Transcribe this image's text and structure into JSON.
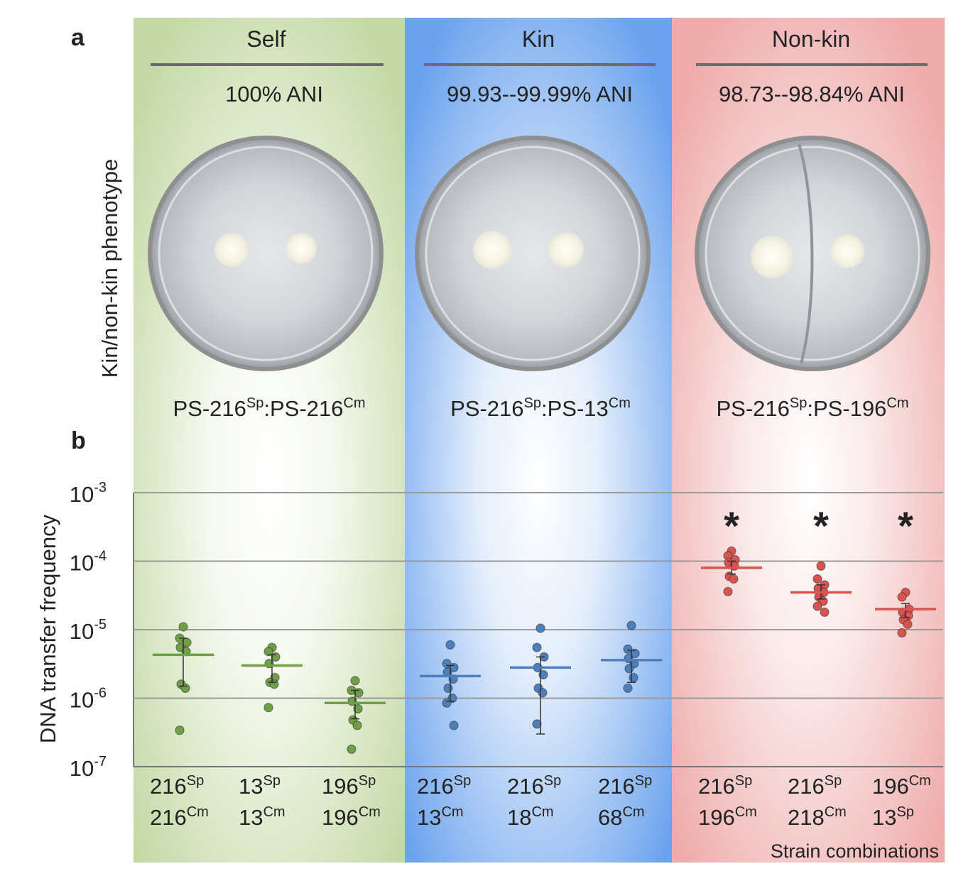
{
  "panel_labels": {
    "a": "a",
    "b": "b"
  },
  "panel_a": {
    "side_label": "Kin/non-kin phenotype",
    "groups": [
      {
        "title": "Self",
        "ani": "100% ANI",
        "pair": [
          "PS-216",
          "Sp",
          ":PS-216",
          "Cm"
        ]
      },
      {
        "title": "Kin",
        "ani": "99.93--99.99% ANI",
        "pair": [
          "PS-216",
          "Sp",
          ":PS-13",
          "Cm"
        ]
      },
      {
        "title": "Non-kin",
        "ani": "98.73--98.84% ANI",
        "pair": [
          "PS-216",
          "Sp",
          ":PS-196",
          "Cm"
        ]
      }
    ]
  },
  "colors": {
    "self_bg": "#c9dcae",
    "kin_bg": "#7aacf0",
    "nonkin_bg": "#f1b3b3",
    "self_dot": "#6fa046",
    "kin_dot": "#4d7fbd",
    "nonkin_dot": "#d9534f",
    "grid": "#9a9a9a"
  },
  "chart_data": {
    "type": "scatter",
    "ylabel": "DNA transfer frequency",
    "xlabel": "Strain combinations",
    "yscale": "log",
    "ylim": [
      1e-07,
      0.001
    ],
    "yticks": [
      {
        "base": "10",
        "exp": "-3"
      },
      {
        "base": "10",
        "exp": "-4"
      },
      {
        "base": "10",
        "exp": "-5"
      },
      {
        "base": "10",
        "exp": "-6"
      },
      {
        "base": "10",
        "exp": "-7"
      }
    ],
    "grid": true,
    "categories": [
      {
        "group": "Self",
        "l1": [
          "216",
          "Sp"
        ],
        "l2": [
          "216",
          "Cm"
        ],
        "median": 4.3e-06,
        "lo": 1.5e-06,
        "hi": 7.5e-06,
        "sig": "",
        "values": [
          1.1e-05,
          7.5e-06,
          6.5e-06,
          5.5e-06,
          4.8e-06,
          1.6e-06,
          1.4e-06,
          3.4e-07
        ]
      },
      {
        "group": "Self",
        "l1": [
          "13",
          "Sp"
        ],
        "l2": [
          "13",
          "Cm"
        ],
        "median": 3e-06,
        "lo": 1.7e-06,
        "hi": 4.3e-06,
        "sig": "",
        "values": [
          5.5e-06,
          4.8e-06,
          4e-06,
          3.2e-06,
          2e-06,
          1.7e-06,
          1.6e-06,
          7.3e-07
        ]
      },
      {
        "group": "Self",
        "l1": [
          "196",
          "Sp"
        ],
        "l2": [
          "196",
          "Cm"
        ],
        "median": 8.5e-07,
        "lo": 5e-07,
        "hi": 1.3e-06,
        "sig": "",
        "values": [
          1.8e-06,
          1.3e-06,
          1.2e-06,
          9e-07,
          7e-07,
          4.8e-07,
          4e-07,
          1.8e-07
        ]
      },
      {
        "group": "Kin",
        "l1": [
          "216",
          "Sp"
        ],
        "l2": [
          "13",
          "Cm"
        ],
        "median": 2.1e-06,
        "lo": 9e-07,
        "hi": 3e-06,
        "sig": "",
        "values": [
          6e-06,
          3.2e-06,
          2.8e-06,
          2.4e-06,
          1.9e-06,
          1.4e-06,
          1e-06,
          8.5e-07,
          4e-07
        ]
      },
      {
        "group": "Kin",
        "l1": [
          "216",
          "Sp"
        ],
        "l2": [
          "18",
          "Cm"
        ],
        "median": 2.8e-06,
        "lo": 3e-07,
        "hi": 4e-06,
        "sig": "",
        "values": [
          1.05e-05,
          5.5e-06,
          4e-06,
          2.8e-06,
          2.2e-06,
          1.4e-06,
          1.2e-06,
          4.2e-07
        ]
      },
      {
        "group": "Kin",
        "l1": [
          "216",
          "Sp"
        ],
        "l2": [
          "68",
          "Cm"
        ],
        "median": 3.6e-06,
        "lo": 1.7e-06,
        "hi": 5e-06,
        "sig": "",
        "values": [
          1.15e-05,
          5.2e-06,
          4.5e-06,
          3.8e-06,
          3.2e-06,
          2.7e-06,
          2e-06,
          1.4e-06
        ]
      },
      {
        "group": "Non-kin",
        "l1": [
          "216",
          "Sp"
        ],
        "l2": [
          "196",
          "Cm"
        ],
        "median": 8e-05,
        "lo": 6.5e-05,
        "hi": 0.0001,
        "sig": "*",
        "values": [
          0.00014,
          0.00012,
          0.000105,
          9.5e-05,
          8.5e-05,
          6e-05,
          5.5e-05,
          3.6e-05
        ]
      },
      {
        "group": "Non-kin",
        "l1": [
          "216",
          "Sp"
        ],
        "l2": [
          "218",
          "Cm"
        ],
        "median": 3.5e-05,
        "lo": 2.8e-05,
        "hi": 4.5e-05,
        "sig": "*",
        "values": [
          8.5e-05,
          5.5e-05,
          4.5e-05,
          4e-05,
          3.5e-05,
          3e-05,
          2.6e-05,
          2.2e-05,
          1.8e-05
        ]
      },
      {
        "group": "Non-kin",
        "l1": [
          "196",
          "Cm"
        ],
        "l2": [
          "13",
          "Sp"
        ],
        "median": 2e-05,
        "lo": 1.5e-05,
        "hi": 2.4e-05,
        "sig": "*",
        "values": [
          3.5e-05,
          3e-05,
          2e-05,
          1.8e-05,
          1.6e-05,
          1.4e-05,
          1.2e-05,
          9e-06
        ]
      }
    ]
  }
}
